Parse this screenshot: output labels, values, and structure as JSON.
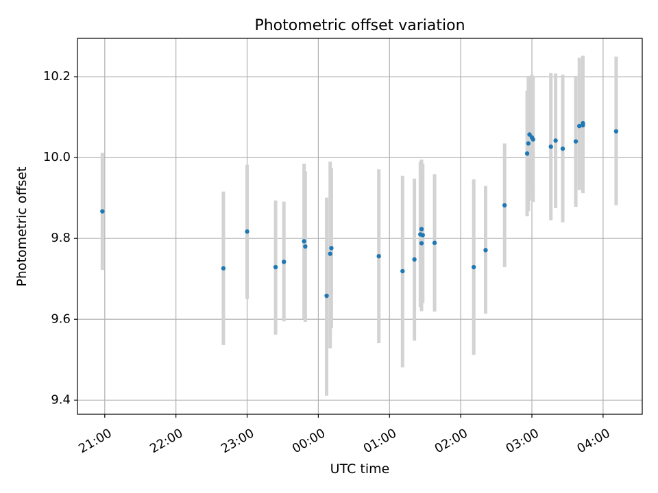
{
  "chart_data": {
    "type": "scatter",
    "title": "Photometric offset variation",
    "xlabel": "UTC time",
    "ylabel": "Photometric offset",
    "x_unit": "UTC",
    "xlim": [
      "20:37",
      "04:33"
    ],
    "ylim": [
      9.365,
      10.295
    ],
    "grid": true,
    "x_ticks": [
      "21:00",
      "22:00",
      "23:00",
      "00:00",
      "01:00",
      "02:00",
      "03:00",
      "04:00"
    ],
    "y_ticks": [
      9.4,
      9.6,
      9.8,
      10.0,
      10.2
    ],
    "y_tick_labels": [
      "9.4",
      "9.6",
      "9.8",
      "10.0",
      "10.2"
    ],
    "point_color": "#1f77b4",
    "errorbar_color": "#d3d3d3",
    "points": [
      {
        "x": "20:58",
        "y": 9.867,
        "lo": 9.722,
        "hi": 10.012
      },
      {
        "x": "22:40",
        "y": 9.726,
        "lo": 9.536,
        "hi": 9.916
      },
      {
        "x": "23:00",
        "y": 9.817,
        "lo": 9.65,
        "hi": 9.982
      },
      {
        "x": "23:24",
        "y": 9.729,
        "lo": 9.562,
        "hi": 9.894
      },
      {
        "x": "23:31",
        "y": 9.742,
        "lo": 9.595,
        "hi": 9.891
      },
      {
        "x": "23:48",
        "y": 9.793,
        "lo": 9.601,
        "hi": 9.985
      },
      {
        "x": "23:49",
        "y": 9.78,
        "lo": 9.594,
        "hi": 9.966
      },
      {
        "x": "00:07",
        "y": 9.658,
        "lo": 9.411,
        "hi": 9.901
      },
      {
        "x": "00:10",
        "y": 9.762,
        "lo": 9.528,
        "hi": 9.99
      },
      {
        "x": "00:11",
        "y": 9.776,
        "lo": 9.578,
        "hi": 9.974
      },
      {
        "x": "00:51",
        "y": 9.756,
        "lo": 9.541,
        "hi": 9.971
      },
      {
        "x": "01:11",
        "y": 9.719,
        "lo": 9.481,
        "hi": 9.955
      },
      {
        "x": "01:21",
        "y": 9.748,
        "lo": 9.547,
        "hi": 9.948
      },
      {
        "x": "01:26",
        "y": 9.81,
        "lo": 9.63,
        "hi": 9.99
      },
      {
        "x": "01:27",
        "y": 9.823,
        "lo": 9.63,
        "hi": 9.995
      },
      {
        "x": "01:27",
        "y": 9.788,
        "lo": 9.62,
        "hi": 9.98
      },
      {
        "x": "01:28",
        "y": 9.808,
        "lo": 9.64,
        "hi": 9.985
      },
      {
        "x": "01:38",
        "y": 9.789,
        "lo": 9.619,
        "hi": 9.959
      },
      {
        "x": "02:11",
        "y": 9.729,
        "lo": 9.512,
        "hi": 9.946
      },
      {
        "x": "02:21",
        "y": 9.771,
        "lo": 9.614,
        "hi": 9.93
      },
      {
        "x": "02:37",
        "y": 9.882,
        "lo": 9.729,
        "hi": 10.035
      },
      {
        "x": "02:56",
        "y": 10.01,
        "lo": 9.855,
        "hi": 10.165
      },
      {
        "x": "02:57",
        "y": 10.035,
        "lo": 9.868,
        "hi": 10.202
      },
      {
        "x": "02:58",
        "y": 10.057,
        "lo": 9.916,
        "hi": 10.2
      },
      {
        "x": "03:00",
        "y": 10.05,
        "lo": 9.893,
        "hi": 10.205
      },
      {
        "x": "03:01",
        "y": 10.045,
        "lo": 9.89,
        "hi": 10.2
      },
      {
        "x": "03:16",
        "y": 10.027,
        "lo": 9.845,
        "hi": 10.209
      },
      {
        "x": "03:20",
        "y": 10.042,
        "lo": 9.875,
        "hi": 10.208
      },
      {
        "x": "03:26",
        "y": 10.022,
        "lo": 9.84,
        "hi": 10.205
      },
      {
        "x": "03:37",
        "y": 10.04,
        "lo": 9.878,
        "hi": 10.202
      },
      {
        "x": "03:40",
        "y": 10.078,
        "lo": 9.92,
        "hi": 10.247
      },
      {
        "x": "03:43",
        "y": 10.085,
        "lo": 9.92,
        "hi": 10.25
      },
      {
        "x": "03:43",
        "y": 10.08,
        "lo": 9.912,
        "hi": 10.252
      },
      {
        "x": "04:11",
        "y": 10.065,
        "lo": 9.882,
        "hi": 10.25
      }
    ]
  }
}
